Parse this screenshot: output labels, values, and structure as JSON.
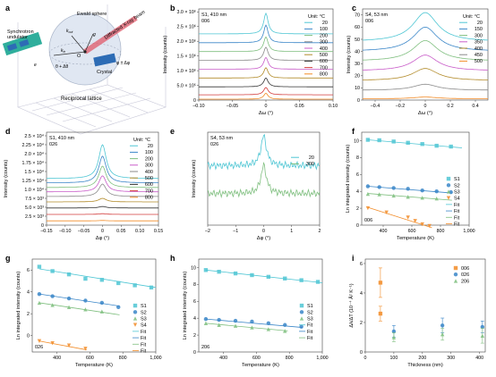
{
  "panels": {
    "a": {
      "letter": "a",
      "labels": {
        "ewald": "Ewald sphere",
        "synchrotron": "Synchrotron",
        "undulator": "undulator",
        "kout": "k",
        "kout_sub": "out",
        "kin": "k",
        "kin_sub": "in",
        "g": "g",
        "o": "O",
        "theta": "θ + Δθ",
        "diffracted": "Diffracted X-ray beam",
        "crystal": "Crystal",
        "phi": "φ ± Δφ",
        "lattice": "Reciprocal lattice",
        "e": "e"
      }
    }
  },
  "chart_data": [
    {
      "panel": "b",
      "type": "line",
      "annotation": [
        "S1, 410 nm",
        "006"
      ],
      "ylabel": "Intensity (counts)",
      "xlabel": "Δω (°)",
      "xlim": [
        -0.1,
        0.1
      ],
      "xticks": [
        -0.1,
        -0.05,
        0,
        0.05,
        0.1
      ],
      "xtick_labels": [
        "–0.10",
        "–0.05",
        "0",
        "0.05",
        "0.10"
      ],
      "yticks": [
        0,
        500000.0,
        1000000.0,
        1500000.0,
        2000000.0,
        2500000.0,
        3000000.0
      ],
      "ytick_labels": [
        "0",
        "5.0 × 10⁵",
        "1.0 × 10⁶",
        "1.5 × 10⁶",
        "2.0 × 10⁶",
        "2.5 × 10⁶",
        "3.0 × 10⁶"
      ],
      "ylim": [
        0,
        3100000.0
      ],
      "legend_title": "Unit: °C",
      "legend_position": "right",
      "series": [
        {
          "name": "20",
          "color": "#4fc6d4",
          "offset": 2250000.0,
          "peak": 700000.0,
          "width": 0.004
        },
        {
          "name": "100",
          "color": "#3a86c8",
          "offset": 1950000.0,
          "peak": 600000.0,
          "width": 0.004
        },
        {
          "name": "200",
          "color": "#7fbf7f",
          "offset": 1650000.0,
          "peak": 500000.0,
          "width": 0.004
        },
        {
          "name": "300",
          "color": "#8a8a8a",
          "offset": 1350000.0,
          "peak": 450000.0,
          "width": 0.004
        },
        {
          "name": "400",
          "color": "#c95dc9",
          "offset": 1050000.0,
          "peak": 400000.0,
          "width": 0.004
        },
        {
          "name": "500",
          "color": "#b28b2a",
          "offset": 750000.0,
          "peak": 350000.0,
          "width": 0.004
        },
        {
          "name": "600",
          "color": "#333333",
          "offset": 450000.0,
          "peak": 300000.0,
          "width": 0.004
        },
        {
          "name": "700",
          "color": "#d23c3c",
          "offset": 180000.0,
          "peak": 250000.0,
          "width": 0.004
        },
        {
          "name": "800",
          "color": "#f28c28",
          "offset": 30000.0,
          "peak": 200000.0,
          "width": 0.004
        }
      ]
    },
    {
      "panel": "c",
      "type": "line",
      "annotation": [
        "S4, 53 nm",
        "006"
      ],
      "ylabel": "Intensity (counts)",
      "xlabel": "Δω (°)",
      "xlim": [
        -0.5,
        0.5
      ],
      "xticks": [
        -0.4,
        -0.2,
        0,
        0.2,
        0.4
      ],
      "xtick_labels": [
        "–0.4",
        "–0.2",
        "0",
        "0.2",
        "0.4"
      ],
      "yticks": [
        0,
        10,
        20,
        30,
        40,
        50,
        60,
        70
      ],
      "ytick_labels": [
        "0",
        "10",
        "20",
        "30",
        "40",
        "50",
        "60",
        "70"
      ],
      "ylim": [
        0,
        75
      ],
      "legend_title": "Unit: °C",
      "legend_position": "right",
      "series": [
        {
          "name": "20",
          "color": "#4fc6d4",
          "offset": 48,
          "peak": 24,
          "width": 0.12
        },
        {
          "name": "150",
          "color": "#3a86c8",
          "offset": 40,
          "peak": 20,
          "width": 0.12
        },
        {
          "name": "300",
          "color": "#7fbf7f",
          "offset": 32,
          "peak": 17,
          "width": 0.12
        },
        {
          "name": "350",
          "color": "#c95dc9",
          "offset": 24,
          "peak": 13,
          "width": 0.12
        },
        {
          "name": "400",
          "color": "#b28b2a",
          "offset": 16,
          "peak": 10,
          "width": 0.12
        },
        {
          "name": "450",
          "color": "#8a8a8a",
          "offset": 8,
          "peak": 5,
          "width": 0.12
        },
        {
          "name": "500",
          "color": "#f28c28",
          "offset": 1,
          "peak": 1.5,
          "width": 0.12
        }
      ]
    },
    {
      "panel": "d",
      "type": "line",
      "annotation": [
        "S1, 410 nm",
        "026"
      ],
      "ylabel": "Intensity (counts)",
      "xlabel": "Δφ (°)",
      "xlim": [
        -0.15,
        0.15
      ],
      "xticks": [
        -0.15,
        -0.1,
        -0.05,
        0,
        0.05,
        0.1,
        0.15
      ],
      "xtick_labels": [
        "–0.15",
        "–0.10",
        "–0.05",
        "0",
        "0.05",
        "0.10",
        "0.15"
      ],
      "yticks": [
        0,
        2500.0,
        5000.0,
        7500.0,
        10000.0,
        12500.0,
        15000.0,
        17500.0,
        20000.0,
        22500.0,
        25000.0
      ],
      "ytick_labels": [
        "0",
        "2.5 × 10³",
        "5.0 × 10³",
        "7.5 × 10³",
        "1.0 × 10⁴",
        "1.25 × 10⁴",
        "1.5 × 10⁴",
        "1.75 × 10⁴",
        "2.0 × 10⁴",
        "2.25 × 10⁴",
        "2.5 × 10⁴"
      ],
      "ylim": [
        0,
        26000.0
      ],
      "legend_title": "Unit: °C",
      "legend_position": "right",
      "series": [
        {
          "name": "20",
          "color": "#4fc6d4",
          "offset": 13000.0,
          "peak": 9500.0,
          "width": 0.012
        },
        {
          "name": "100",
          "color": "#3a86c8",
          "offset": 11800.0,
          "peak": 7500.0,
          "width": 0.012
        },
        {
          "name": "200",
          "color": "#7fbf7f",
          "offset": 10500.0,
          "peak": 6000.0,
          "width": 0.012
        },
        {
          "name": "300",
          "color": "#c95dc9",
          "offset": 9300.0,
          "peak": 4500.0,
          "width": 0.012
        },
        {
          "name": "400",
          "color": "#8a8a8a",
          "offset": 8000.0,
          "peak": 3500.0,
          "width": 0.012
        },
        {
          "name": "500",
          "color": "#b28b2a",
          "offset": 6500.0,
          "peak": 1000.0,
          "width": 0.012
        },
        {
          "name": "600",
          "color": "#333333",
          "offset": 4800.0,
          "peak": 400,
          "width": 0.012
        },
        {
          "name": "700",
          "color": "#d23c3c",
          "offset": 3000.0,
          "peak": 200,
          "width": 0.012
        },
        {
          "name": "800",
          "color": "#f28c28",
          "offset": 1200.0,
          "peak": 100,
          "width": 0.012
        }
      ]
    },
    {
      "panel": "e",
      "type": "line",
      "annotation": [
        "S4, 53 nm",
        "026"
      ],
      "ylabel": "Intensity (counts)",
      "xlabel": "Δφ (°)",
      "xlim": [
        -2,
        2
      ],
      "xticks": [
        -2,
        -1,
        0,
        1,
        2
      ],
      "xtick_labels": [
        "–2",
        "–1",
        "0",
        "1",
        "2"
      ],
      "ylim": [
        0,
        10
      ],
      "legend_position": "right",
      "series": [
        {
          "name": "20",
          "color": "#4fc6d4",
          "offset": 6.4,
          "peak": 3.2,
          "width": 0.12
        },
        {
          "name": "300",
          "color": "#7fbf7f",
          "offset": 3.4,
          "peak": 3.0,
          "width": 0.12
        }
      ]
    },
    {
      "panel": "f",
      "type": "scatter",
      "annotation": [
        "006"
      ],
      "ylabel": "Ln integrated intensity (counts)",
      "xlabel": "Temperature (K)",
      "xlim": [
        250,
        1000
      ],
      "ylim": [
        0,
        11
      ],
      "xticks": [
        400,
        600,
        800,
        1000
      ],
      "xtick_labels": [
        "400",
        "600",
        "800",
        "1,000"
      ],
      "yticks": [
        0,
        2,
        4,
        6,
        8,
        10
      ],
      "ytick_labels": [
        "0",
        "2",
        "4",
        "6",
        "8",
        "10"
      ],
      "legend_position": "right",
      "series": [
        {
          "name": "S1",
          "color": "#4fc6d4",
          "marker": "square",
          "x": [
            293,
            373,
            473,
            573,
            673,
            773,
            873
          ],
          "y": [
            10.1,
            10.05,
            9.9,
            9.75,
            9.6,
            9.4,
            9.3
          ],
          "fit": [
            [
              293,
              10.1
            ],
            [
              950,
              9.15
            ]
          ]
        },
        {
          "name": "S2",
          "color": "#3a86c8",
          "marker": "circle",
          "x": [
            293,
            373,
            473,
            573,
            673,
            773,
            873
          ],
          "y": [
            4.6,
            4.5,
            4.4,
            4.3,
            4.1,
            4.0,
            3.9
          ],
          "fit": [
            [
              293,
              4.6
            ],
            [
              880,
              3.8
            ]
          ]
        },
        {
          "name": "S3",
          "color": "#7fbf7f",
          "marker": "triangle",
          "x": [
            293,
            373,
            473,
            573,
            673,
            773
          ],
          "y": [
            3.7,
            3.65,
            3.5,
            3.35,
            3.25,
            3.15
          ],
          "fit": [
            [
              293,
              3.75
            ],
            [
              880,
              2.95
            ]
          ]
        },
        {
          "name": "S4",
          "color": "#f28c28",
          "marker": "down-triangle",
          "x": [
            293,
            423,
            573,
            623,
            673,
            723
          ],
          "y": [
            2.0,
            1.5,
            0.9,
            0.5,
            0.1,
            -0.1
          ],
          "fit": [
            [
              293,
              2.1
            ],
            [
              740,
              -0.3
            ]
          ]
        }
      ],
      "fit_labels": [
        "Fit",
        "Fit",
        "Fit",
        "Fit"
      ]
    },
    {
      "panel": "g",
      "type": "scatter",
      "annotation": [
        "026"
      ],
      "ylabel": "Ln integrated intensity (counts)",
      "xlabel": "Temperature (K)",
      "xlim": [
        250,
        1000
      ],
      "ylim": [
        -1.5,
        7
      ],
      "xticks": [
        400,
        600,
        800,
        1000
      ],
      "xtick_labels": [
        "400",
        "600",
        "800",
        "1,000"
      ],
      "yticks": [
        0,
        2,
        4,
        6
      ],
      "ytick_labels": [
        "0",
        "2",
        "4",
        "6"
      ],
      "legend_position": "right",
      "series": [
        {
          "name": "S1",
          "color": "#4fc6d4",
          "marker": "square",
          "x": [
            293,
            373,
            473,
            573,
            673,
            773,
            873,
            973
          ],
          "y": [
            6.3,
            5.9,
            5.6,
            5.2,
            5.1,
            4.8,
            4.6,
            4.4
          ],
          "fit": [
            [
              293,
              6.1
            ],
            [
              1000,
              4.4
            ]
          ]
        },
        {
          "name": "S2",
          "color": "#3a86c8",
          "marker": "circle",
          "x": [
            293,
            373,
            473,
            573,
            673,
            773
          ],
          "y": [
            3.8,
            3.6,
            3.4,
            3.2,
            3.0,
            2.6
          ],
          "fit": [
            [
              293,
              3.8
            ],
            [
              780,
              2.7
            ]
          ]
        },
        {
          "name": "S3",
          "color": "#7fbf7f",
          "marker": "triangle",
          "x": [
            293,
            373,
            473,
            573,
            673
          ],
          "y": [
            3.0,
            2.8,
            2.6,
            2.4,
            2.2
          ],
          "fit": [
            [
              293,
              3.0
            ],
            [
              780,
              1.9
            ]
          ]
        },
        {
          "name": "S4",
          "color": "#f28c28",
          "marker": "down-triangle",
          "x": [
            293,
            373,
            473,
            573
          ],
          "y": [
            -0.5,
            -0.7,
            -0.9,
            -1.2
          ],
          "fit": [
            [
              293,
              -0.5
            ],
            [
              580,
              -1.3
            ]
          ]
        }
      ],
      "fit_labels": [
        "Fit",
        "Fit",
        "Fit",
        "Fit"
      ]
    },
    {
      "panel": "h",
      "type": "scatter",
      "annotation": [
        "206"
      ],
      "ylabel": "Ln integrated intensity (counts)",
      "xlabel": "Temperature (K)",
      "xlim": [
        250,
        1000
      ],
      "ylim": [
        0,
        11
      ],
      "xticks": [
        400,
        600,
        800,
        1000
      ],
      "xtick_labels": [
        "400",
        "600",
        "800",
        "1,000"
      ],
      "yticks": [
        0,
        2,
        4,
        6,
        8,
        10
      ],
      "ytick_labels": [
        "0",
        "2",
        "4",
        "6",
        "8",
        "10"
      ],
      "legend_position": "right",
      "series": [
        {
          "name": "S1",
          "color": "#4fc6d4",
          "marker": "square",
          "x": [
            293,
            373,
            473,
            573,
            673,
            773,
            873,
            973
          ],
          "y": [
            9.7,
            9.5,
            9.3,
            9.1,
            8.9,
            8.7,
            8.5,
            8.3
          ],
          "fit": [
            [
              293,
              9.7
            ],
            [
              1000,
              8.2
            ]
          ]
        },
        {
          "name": "S2",
          "color": "#3a86c8",
          "marker": "circle",
          "x": [
            293,
            373,
            473,
            573,
            673,
            773,
            873
          ],
          "y": [
            3.9,
            3.8,
            3.7,
            3.6,
            3.4,
            3.2,
            3.0
          ],
          "fit": [
            [
              293,
              3.9
            ],
            [
              880,
              2.9
            ]
          ]
        },
        {
          "name": "S3",
          "color": "#7fbf7f",
          "marker": "triangle",
          "x": [
            293,
            373,
            473,
            573,
            673,
            773
          ],
          "y": [
            3.4,
            3.2,
            3.1,
            2.9,
            2.7,
            2.5
          ],
          "fit": [
            [
              293,
              3.4
            ],
            [
              790,
              2.5
            ]
          ]
        }
      ],
      "fit_labels": [
        "Fit",
        "Fit",
        "Fit"
      ]
    },
    {
      "panel": "i",
      "type": "scatter",
      "ylabel": "Δλ/ΔT (10⁻⁴ Å² K⁻¹)",
      "xlabel": "Thickness (nm)",
      "xlim": [
        0,
        420
      ],
      "ylim": [
        0,
        6.3
      ],
      "xticks": [
        0,
        100,
        200,
        300,
        400
      ],
      "xtick_labels": [
        "0",
        "100",
        "200",
        "300",
        "400"
      ],
      "yticks": [
        0,
        2,
        4,
        6
      ],
      "ytick_labels": [
        "0",
        "2",
        "4",
        "6"
      ],
      "legend_position": "top-right",
      "series": [
        {
          "name": "006",
          "color": "#f28c28",
          "marker": "square",
          "x": [
            53,
            53
          ],
          "y": [
            4.7,
            2.6
          ],
          "err": [
            1.0,
            0.5
          ],
          "extra_colors": [
            "#f28c28",
            "#f28c28"
          ]
        },
        {
          "name": "026",
          "color": "#3a86c8",
          "marker": "circle",
          "x": [
            100,
            270,
            410
          ],
          "y": [
            1.4,
            1.8,
            1.7
          ],
          "err": [
            0.4,
            0.5,
            0.4
          ]
        },
        {
          "name": "206",
          "color": "#7fbf7f",
          "marker": "triangle",
          "x": [
            100,
            270,
            410
          ],
          "y": [
            1.0,
            1.2,
            1.1
          ],
          "err": [
            0.3,
            0.4,
            0.5
          ]
        }
      ]
    }
  ]
}
